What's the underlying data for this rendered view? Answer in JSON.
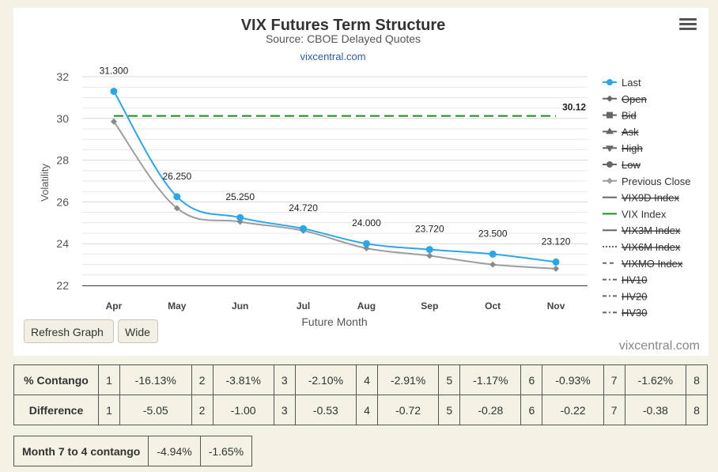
{
  "chart_data": {
    "type": "line",
    "title": "VIX Futures Term Structure",
    "subtitle": "Source: CBOE Delayed Quotes",
    "subtitle_link": "vixcentral.com",
    "xlabel": "Future Month",
    "ylabel": "Volatility",
    "ylim": [
      22,
      32
    ],
    "yticks": [
      22,
      24,
      26,
      28,
      30,
      32
    ],
    "categories": [
      "Apr",
      "May",
      "Jun",
      "Jul",
      "Aug",
      "Sep",
      "Oct",
      "Nov"
    ],
    "series": [
      {
        "name": "Last",
        "values": [
          31.3,
          26.25,
          25.25,
          24.72,
          24.0,
          23.72,
          23.5,
          23.12
        ],
        "data_labels": [
          "31.300",
          "26.250",
          "25.250",
          "24.720",
          "24.000",
          "23.720",
          "23.500",
          "23.120"
        ],
        "color": "#2aa7ea",
        "visible": true
      },
      {
        "name": "Previous Close",
        "values": [
          29.85,
          25.7,
          25.05,
          24.62,
          23.78,
          23.42,
          23.0,
          22.8
        ],
        "color": "#9e9e9e",
        "visible": true
      },
      {
        "name": "VIX Index",
        "value": 30.12,
        "label": "30.12",
        "color": "#1f8a1f",
        "dashed": true,
        "visible": true
      }
    ],
    "legend": {
      "placement": "right",
      "items": [
        {
          "name": "Last",
          "marker": "circle",
          "color": "#2aa7ea",
          "hidden": false
        },
        {
          "name": "Open",
          "marker": "diamond",
          "color": "#666666",
          "hidden": true
        },
        {
          "name": "Bid",
          "marker": "square",
          "color": "#666666",
          "hidden": true
        },
        {
          "name": "Ask",
          "marker": "triangle",
          "color": "#666666",
          "hidden": true
        },
        {
          "name": "High",
          "marker": "triangle-down",
          "color": "#666666",
          "hidden": true
        },
        {
          "name": "Low",
          "marker": "circle",
          "color": "#666666",
          "hidden": true
        },
        {
          "name": "Previous Close",
          "marker": "diamond",
          "color": "#9e9e9e",
          "hidden": false
        },
        {
          "name": "VIX9D Index",
          "marker": "line",
          "color": "#666666",
          "hidden": true
        },
        {
          "name": "VIX Index",
          "marker": "line",
          "color": "#1f8a1f",
          "hidden": false
        },
        {
          "name": "VIX3M Index",
          "marker": "line",
          "color": "#666666",
          "hidden": true
        },
        {
          "name": "VIX6M Index",
          "marker": "dotted",
          "color": "#666666",
          "hidden": true
        },
        {
          "name": "VIXMO Index",
          "marker": "dashed",
          "color": "#666666",
          "hidden": true
        },
        {
          "name": "HV10",
          "marker": "dashdot",
          "color": "#666666",
          "hidden": true
        },
        {
          "name": "HV20",
          "marker": "dashdot",
          "color": "#666666",
          "hidden": true
        },
        {
          "name": "HV30",
          "marker": "dashdot",
          "color": "#666666",
          "hidden": true
        }
      ]
    },
    "grid": true
  },
  "buttons": {
    "refresh": "Refresh Graph",
    "wide": "Wide"
  },
  "credit": "vixcentral.com",
  "contango_table": {
    "contango": {
      "label": "% Contango",
      "cells": [
        [
          "1",
          "-16.13%"
        ],
        [
          "2",
          "-3.81%"
        ],
        [
          "3",
          "-2.10%"
        ],
        [
          "4",
          "-2.91%"
        ],
        [
          "5",
          "-1.17%"
        ],
        [
          "6",
          "-0.93%"
        ],
        [
          "7",
          "-1.62%"
        ],
        [
          "8",
          ""
        ]
      ]
    },
    "difference": {
      "label": "Difference",
      "cells": [
        [
          "1",
          "-5.05"
        ],
        [
          "2",
          "-1.00"
        ],
        [
          "3",
          "-0.53"
        ],
        [
          "4",
          "-0.72"
        ],
        [
          "5",
          "-0.28"
        ],
        [
          "6",
          "-0.22"
        ],
        [
          "7",
          "-0.38"
        ],
        [
          "8",
          ""
        ]
      ]
    }
  },
  "month_7_to_4": {
    "label": "Month 7 to 4 contango",
    "values": [
      "-4.94%",
      "-1.65%"
    ]
  }
}
